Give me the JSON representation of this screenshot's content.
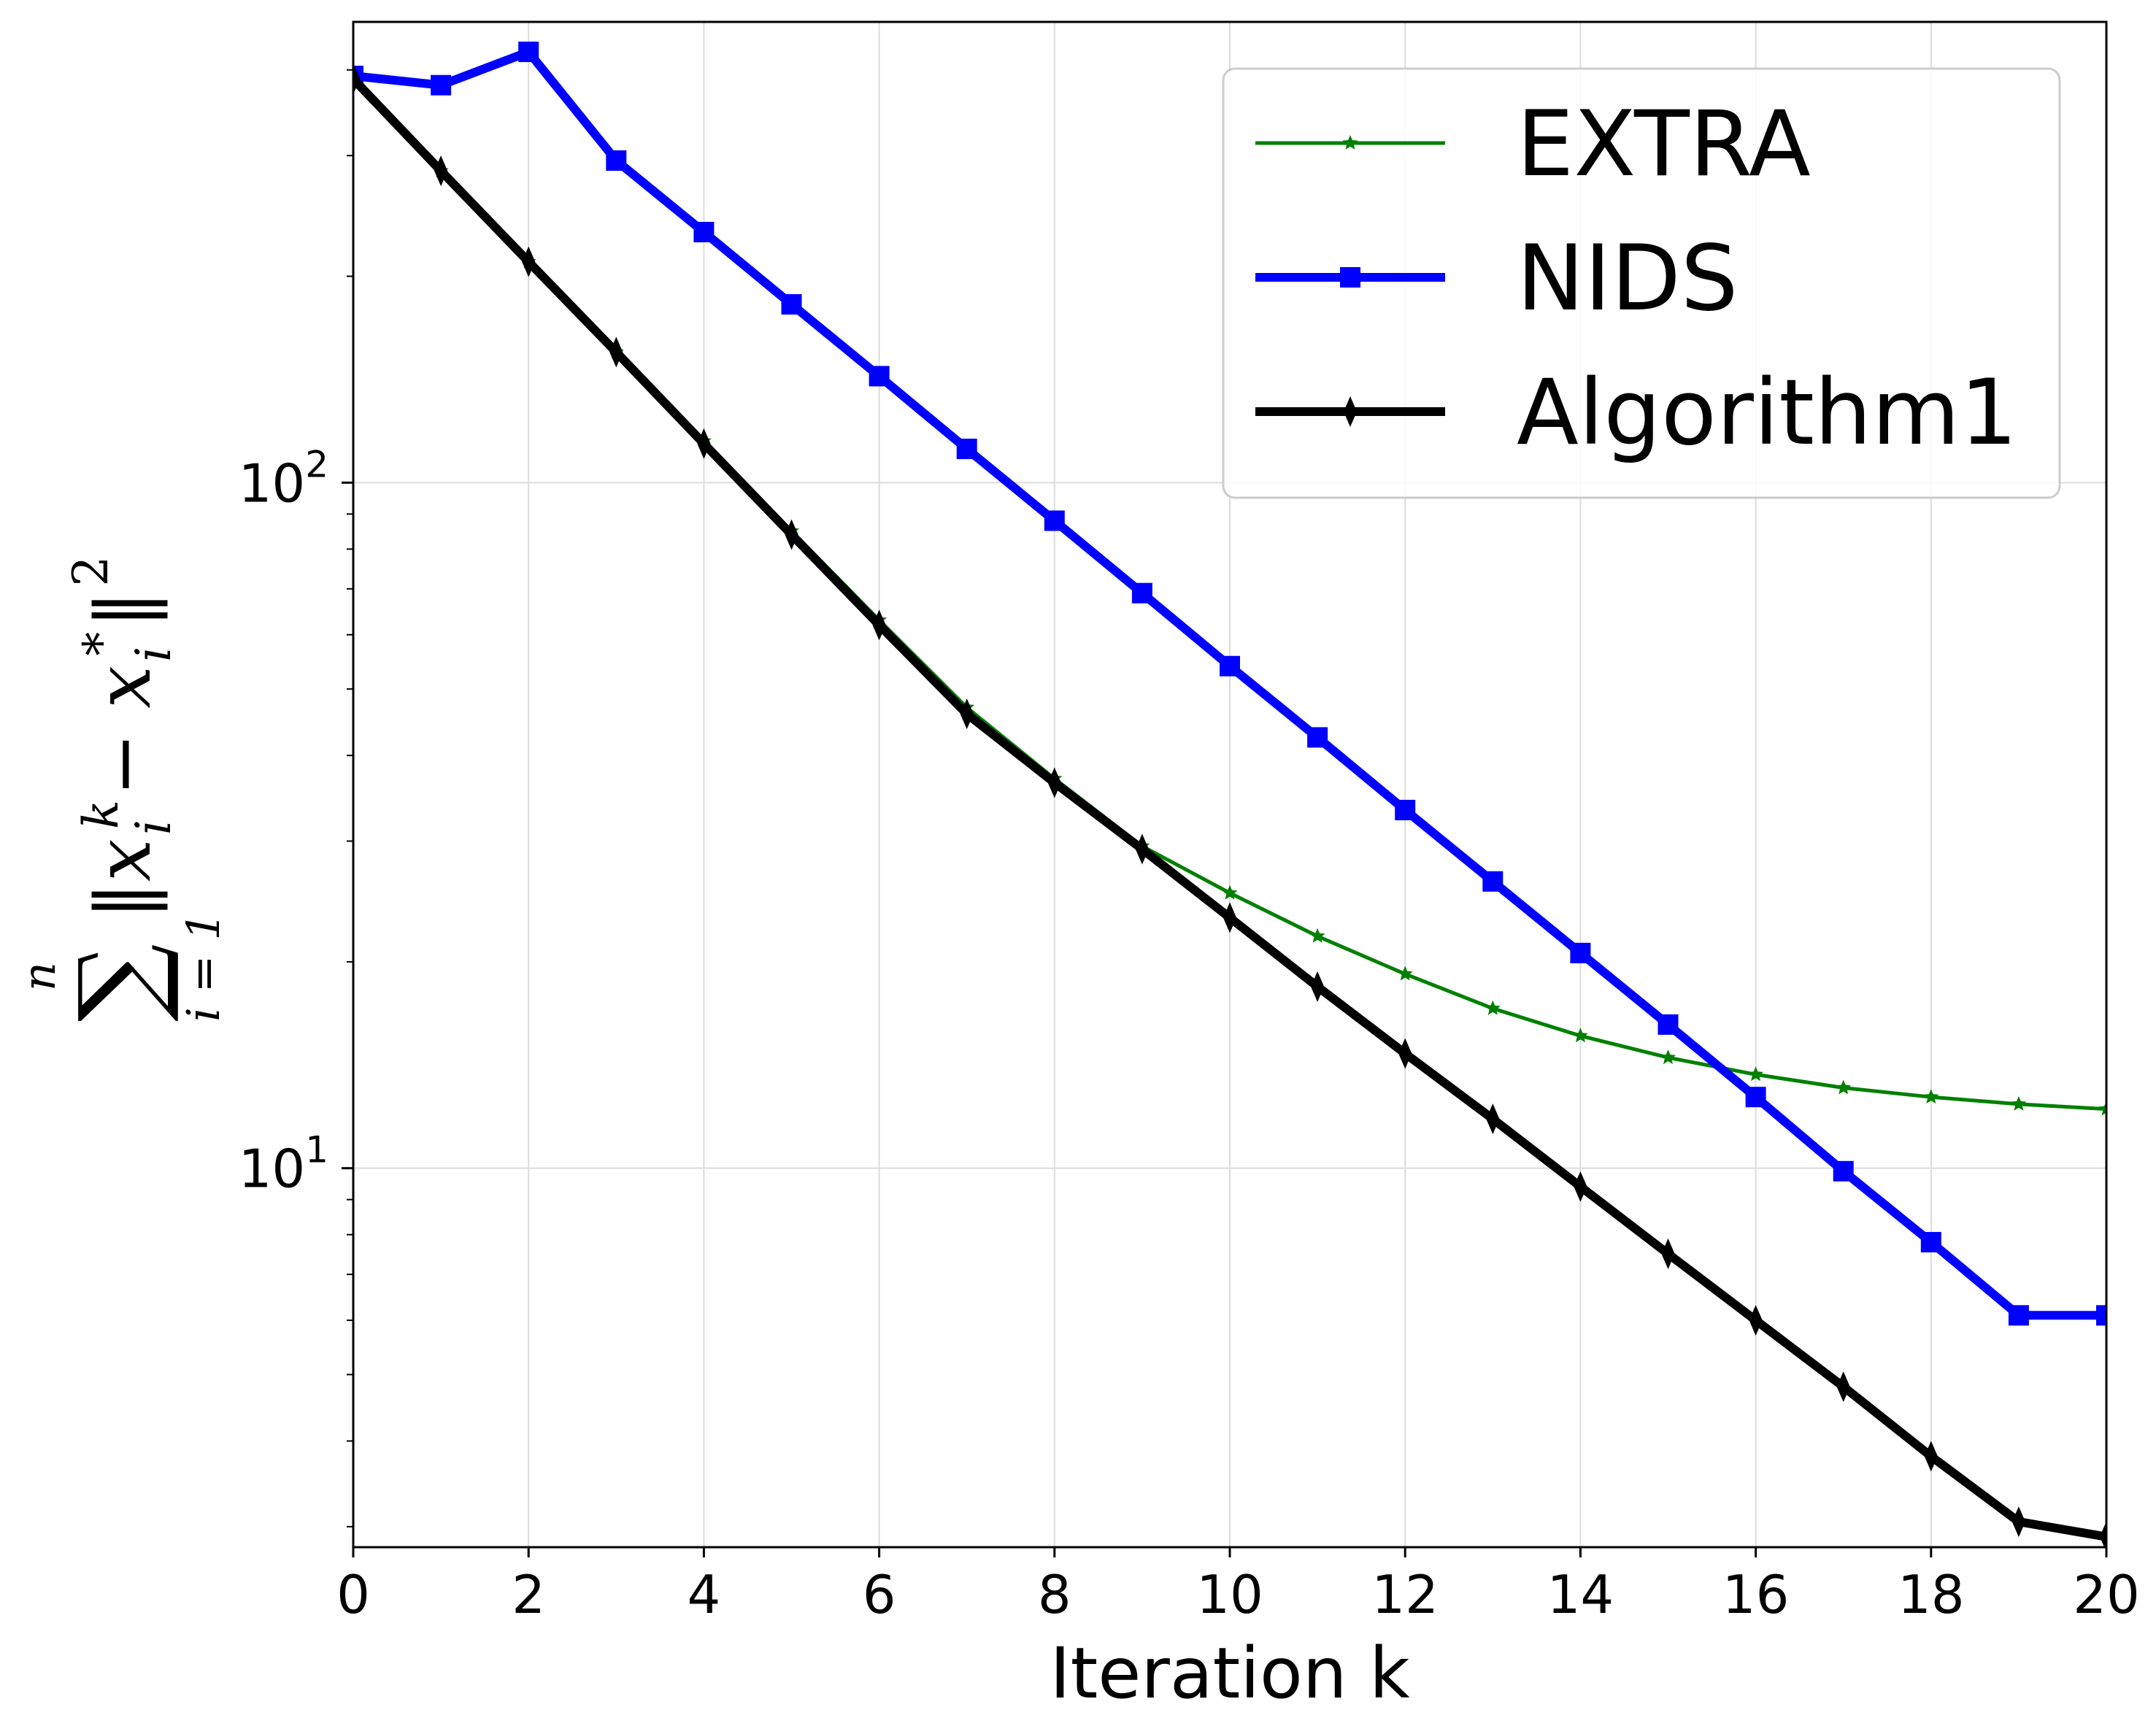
{
  "chart_data": {
    "type": "line",
    "xlabel": "Iteration k",
    "ylabel": "∑ᵢ₌₁ⁿ ‖xᵢᵏ − xᵢ*‖²",
    "ylabel_parts": {
      "sum": "∑",
      "upper": "n",
      "lower": "i = 1",
      "body": "‖x",
      "sub1": "i",
      "sup1": "k",
      "minus": " − x",
      "sub2": "i",
      "sup2": "*",
      "close": " ‖",
      "sup3": "2"
    },
    "x_scale": "linear",
    "y_scale": "log",
    "xlim": [
      0,
      20
    ],
    "ylim": [
      2.8,
      470
    ],
    "xticks": [
      0,
      2,
      4,
      6,
      8,
      10,
      12,
      14,
      16,
      18,
      20
    ],
    "xtick_labels": [
      "0",
      "2",
      "4",
      "6",
      "8",
      "10",
      "12",
      "14",
      "16",
      "18",
      "20"
    ],
    "yticks": [
      {
        "value": 10,
        "base": "10",
        "exponent": "1"
      },
      {
        "value": 100,
        "base": "10",
        "exponent": "2"
      }
    ],
    "grid": true,
    "legend_position": "top-right",
    "x": [
      0,
      1,
      2,
      3,
      4,
      5,
      6,
      7,
      8,
      9,
      10,
      11,
      12,
      13,
      14,
      15,
      16,
      17,
      18,
      19,
      20
    ],
    "series": [
      {
        "name": "EXTRA",
        "color": "#008000",
        "marker": "star",
        "line_width": "thin",
        "values": [
          390,
          285,
          210,
          155,
          115,
          85,
          63,
          47,
          37,
          29.5,
          25.2,
          21.8,
          19.2,
          17.1,
          15.6,
          14.5,
          13.7,
          13.1,
          12.7,
          12.4,
          12.2
        ]
      },
      {
        "name": "NIDS",
        "color": "#0000ff",
        "marker": "square",
        "line_width": "thick",
        "values": [
          392,
          380,
          425,
          295,
          232,
          182,
          143,
          112,
          88,
          69,
          54,
          42.5,
          33.3,
          26.2,
          20.6,
          16.2,
          12.7,
          9.9,
          7.8,
          6.1,
          6.1
        ]
      },
      {
        "name": "Algorithm1",
        "color": "#000000",
        "marker": "thin_diamond",
        "line_width": "thick",
        "values": [
          388,
          285,
          210,
          155,
          114,
          84,
          62,
          46,
          36.5,
          29.2,
          23.2,
          18.4,
          14.7,
          11.8,
          9.4,
          7.5,
          6.0,
          4.8,
          3.8,
          3.05,
          2.9
        ]
      }
    ]
  }
}
